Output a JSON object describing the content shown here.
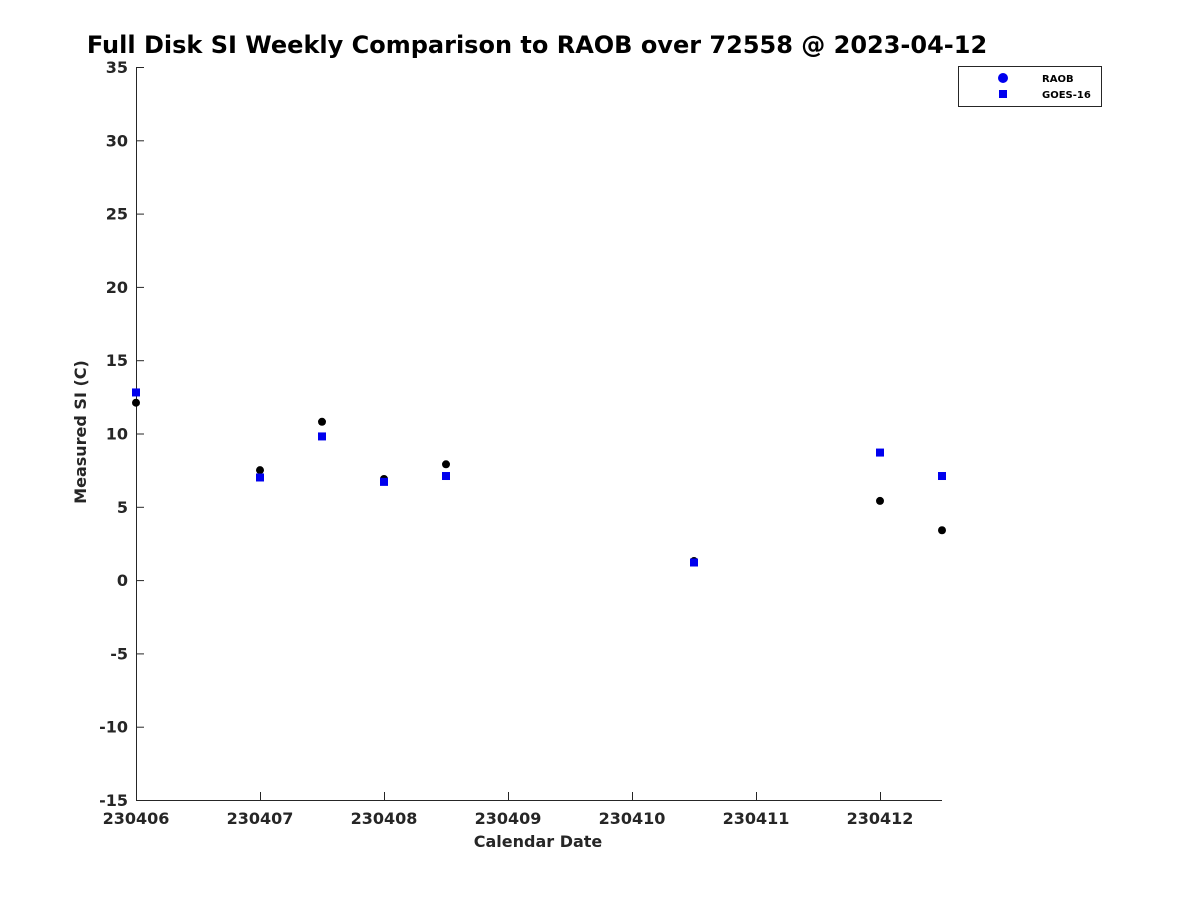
{
  "chart_data": {
    "type": "scatter",
    "title": "Full Disk SI Weekly Comparison to RAOB over 72558 @ 2023-04-12",
    "xlabel": "Calendar Date",
    "ylabel": "Measured SI (C)",
    "xlim": [
      230406,
      230412.5
    ],
    "ylim": [
      -15,
      35
    ],
    "xticks": [
      230406,
      230407,
      230408,
      230409,
      230410,
      230411,
      230412
    ],
    "xtick_labels": [
      "230406",
      "230407",
      "230408",
      "230409",
      "230410",
      "230411",
      "230412"
    ],
    "yticks": [
      -15,
      -10,
      -5,
      0,
      5,
      10,
      15,
      20,
      25,
      30,
      35
    ],
    "ytick_labels": [
      "-15",
      "-10",
      "-5",
      "0",
      "5",
      "10",
      "15",
      "20",
      "25",
      "30",
      "35"
    ],
    "grid": false,
    "legend_placement": "top-right",
    "series": [
      {
        "name": "RAOB",
        "marker": "circle",
        "legend_color": "#0000ee",
        "color": "#000000",
        "points": [
          {
            "x": 230406.0,
            "y": 12.1
          },
          {
            "x": 230407.0,
            "y": 7.5
          },
          {
            "x": 230407.5,
            "y": 10.8
          },
          {
            "x": 230408.0,
            "y": 6.9
          },
          {
            "x": 230408.5,
            "y": 7.9
          },
          {
            "x": 230410.5,
            "y": 1.3
          },
          {
            "x": 230412.0,
            "y": 5.4
          },
          {
            "x": 230412.5,
            "y": 3.4
          }
        ]
      },
      {
        "name": "GOES-16",
        "marker": "square",
        "legend_color": "#0000ee",
        "color": "#0000ee",
        "points": [
          {
            "x": 230406.0,
            "y": 12.8
          },
          {
            "x": 230407.0,
            "y": 7.0
          },
          {
            "x": 230407.5,
            "y": 9.8
          },
          {
            "x": 230408.0,
            "y": 6.7
          },
          {
            "x": 230408.5,
            "y": 7.1
          },
          {
            "x": 230410.5,
            "y": 1.2
          },
          {
            "x": 230412.0,
            "y": 8.7
          },
          {
            "x": 230412.5,
            "y": 7.1
          }
        ]
      }
    ]
  }
}
